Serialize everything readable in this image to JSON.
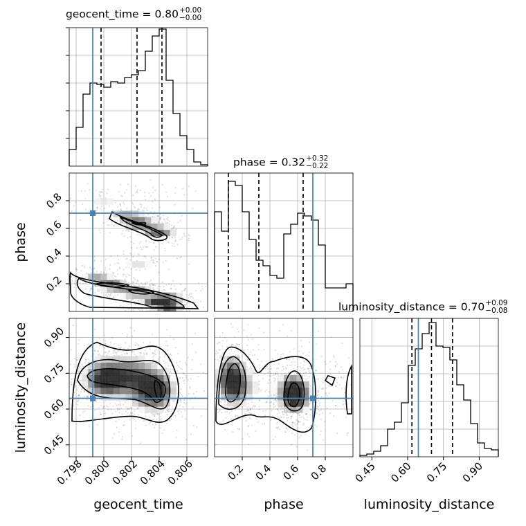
{
  "chart_data": {
    "type": "corner",
    "parameters": [
      {
        "name": "geocent_time",
        "xlabel": "geocent_time",
        "title": {
          "label": "geocent_time",
          "median": "0.80",
          "plus": "+0.00",
          "minus": "−0.00"
        },
        "range": [
          0.7975,
          0.8075
        ],
        "ticks": [
          0.798,
          0.8,
          0.802,
          0.804,
          0.806
        ],
        "tick_labels": [
          "0.798",
          "0.800",
          "0.802",
          "0.804",
          "0.806"
        ],
        "truth": 0.7992,
        "quantiles": [
          0.7998,
          0.8024,
          0.8042
        ],
        "hist": [
          0.12,
          0.28,
          0.52,
          0.6,
          0.59,
          0.57,
          0.61,
          0.6,
          0.64,
          0.66,
          0.69,
          0.83,
          0.94,
          0.99,
          0.62,
          0.38,
          0.22,
          0.12,
          0.03,
          0.01
        ]
      },
      {
        "name": "phase",
        "xlabel": "phase",
        "ylabel": "phase",
        "title": {
          "label": "phase",
          "median": "0.32",
          "plus": "+0.32",
          "minus": "−0.22"
        },
        "range": [
          0.0,
          1.0
        ],
        "ticks": [
          0.2,
          0.4,
          0.6,
          0.8
        ],
        "tick_labels": [
          "0.2",
          "0.4",
          "0.6",
          "0.8"
        ],
        "truth": 0.71,
        "quantiles": [
          0.1,
          0.32,
          0.64
        ],
        "hist": [
          0.72,
          0.58,
          0.94,
          0.91,
          0.72,
          0.52,
          0.37,
          0.33,
          0.26,
          0.24,
          0.56,
          0.63,
          0.71,
          0.69,
          0.66,
          0.48,
          0.17,
          0.17,
          0.17,
          0.2
        ]
      },
      {
        "name": "luminosity_distance",
        "xlabel": "luminosity_distance",
        "ylabel": "luminosity_distance",
        "title": {
          "label": "luminosity_distance",
          "median": "0.70",
          "plus": "+0.09",
          "minus": "−0.08"
        },
        "range": [
          0.4,
          0.98
        ],
        "ticks": [
          0.45,
          0.6,
          0.75,
          0.9
        ],
        "tick_labels": [
          "0.45",
          "0.60",
          "0.75",
          "0.90"
        ],
        "truth": 0.645,
        "quantiles": [
          0.618,
          0.7,
          0.788
        ],
        "hist": [
          0.01,
          0.02,
          0.04,
          0.08,
          0.2,
          0.25,
          0.39,
          0.66,
          0.78,
          0.89,
          0.97,
          0.8,
          0.79,
          0.7,
          0.52,
          0.41,
          0.24,
          0.1,
          0.06,
          0.05
        ]
      }
    ],
    "truth_color": "#4682b4",
    "grid": true,
    "line_color": "#000000"
  }
}
